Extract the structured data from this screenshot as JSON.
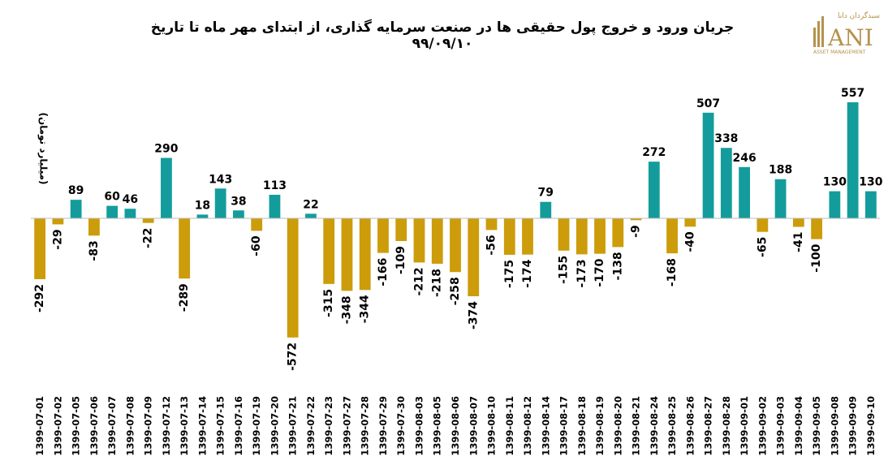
{
  "title": "جریان ورود و خروج پول حقیقی ها در صنعت سرمایه گذاری، از ابتدای مهر ماه تا تاریخ ۹۹/۰۹/۱۰",
  "logo": {
    "tagline": "سبدگردان دانا",
    "mark": "ANI",
    "subtitle": "ASSET MANAGEMENT"
  },
  "colors": {
    "positive": "#149c9c",
    "negative": "#cc9c0a",
    "axis": "#bbbbbb"
  },
  "chart_data": {
    "type": "bar",
    "title": "جریان ورود و خروج پول حقیقی ها در صنعت سرمایه گذاری، از ابتدای مهر ماه تا تاریخ ۹۹/۰۹/۱۰",
    "ylabel": "(میلیارد تومان)",
    "xlabel": "",
    "ylim": [
      -600,
      600
    ],
    "grid": false,
    "categories": [
      "1399-07-01",
      "1399-07-02",
      "1399-07-05",
      "1399-07-06",
      "1399-07-07",
      "1399-07-08",
      "1399-07-09",
      "1399-07-12",
      "1399-07-13",
      "1399-07-14",
      "1399-07-15",
      "1399-07-16",
      "1399-07-19",
      "1399-07-20",
      "1399-07-21",
      "1399-07-22",
      "1399-07-23",
      "1399-07-27",
      "1399-07-28",
      "1399-07-29",
      "1399-07-30",
      "1399-08-03",
      "1399-08-05",
      "1399-08-06",
      "1399-08-07",
      "1399-08-10",
      "1399-08-11",
      "1399-08-12",
      "1399-08-14",
      "1399-08-17",
      "1399-08-18",
      "1399-08-19",
      "1399-08-20",
      "1399-08-21",
      "1399-08-24",
      "1399-08-25",
      "1399-08-26",
      "1399-08-27",
      "1399-08-28",
      "1399-09-01",
      "1399-09-02",
      "1399-09-03",
      "1399-09-04",
      "1399-09-05",
      "1399-09-08",
      "1399-09-09",
      "1399-09-10"
    ],
    "values": [
      -292,
      -29,
      89,
      -83,
      60,
      46,
      -22,
      290,
      -289,
      18,
      143,
      38,
      -60,
      113,
      -572,
      22,
      -315,
      -348,
      -344,
      -166,
      -109,
      -212,
      -218,
      -258,
      -374,
      -56,
      -175,
      -174,
      79,
      -155,
      -173,
      -170,
      -138,
      -9,
      272,
      -168,
      -40,
      507,
      338,
      246,
      -65,
      188,
      -41,
      -100,
      130,
      557,
      130
    ]
  }
}
